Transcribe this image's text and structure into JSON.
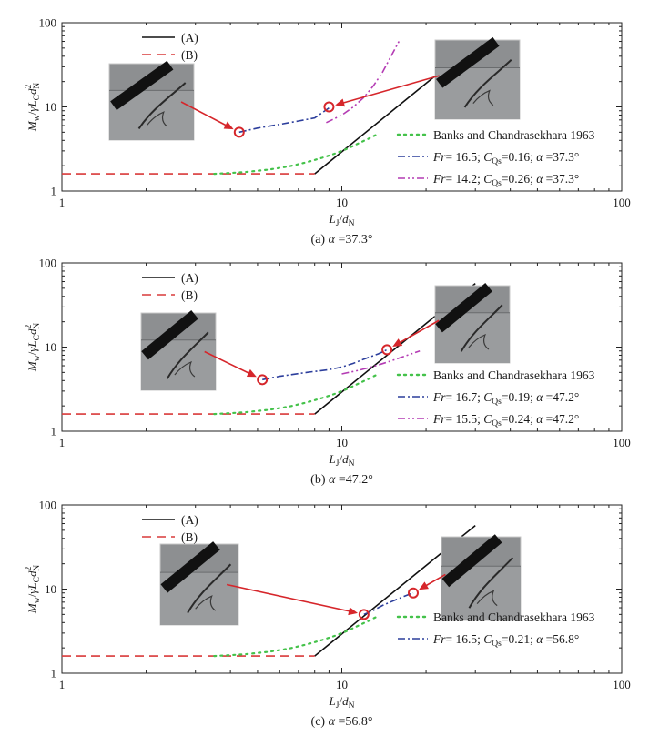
{
  "figure": {
    "xlabel": "L_J/d_N",
    "ylabel": "M_w/γL_C d_N^2",
    "xticks": [
      "1",
      "10",
      "100"
    ],
    "yticks": [
      "1",
      "10",
      "100"
    ],
    "legend_A": "(A)",
    "legend_B": "(B)"
  },
  "chart_data": [
    {
      "type": "line",
      "caption": "(a) α =37.3°",
      "xscale": "log",
      "yscale": "log",
      "xlim": [
        1,
        100
      ],
      "ylim": [
        1,
        100
      ],
      "xlabel": "L_J/d_N",
      "ylabel": "M_w/γL_C d_N^2",
      "series": [
        {
          "key": "A",
          "name": "(A)",
          "color": "#111111",
          "dash": "",
          "x": [
            8,
            30
          ],
          "y": [
            1.6,
            57
          ]
        },
        {
          "key": "B",
          "name": "(B)",
          "color": "#d93a3a",
          "dash": "10,6",
          "x": [
            1,
            8
          ],
          "y": [
            1.6,
            1.6
          ]
        },
        {
          "key": "banks",
          "name": "Banks and Chandrasekhara 1963",
          "color": "#44c24a",
          "dash": "2,5",
          "x": [
            3.5,
            4.5,
            5.5,
            6.5,
            7.5,
            8.5,
            9.5,
            10.5,
            11.5,
            12.5,
            13.5
          ],
          "y": [
            1.6,
            1.68,
            1.8,
            1.97,
            2.2,
            2.48,
            2.8,
            3.2,
            3.7,
            4.2,
            4.8
          ]
        },
        {
          "key": "s1",
          "name": "Fr= 16.5; C_Qs=0.16; α =37.3°",
          "color": "#2c3e9c",
          "dash": "8,3,2,3",
          "x": [
            4.3,
            5,
            6,
            7,
            8,
            9
          ],
          "y": [
            5,
            5.6,
            6.2,
            6.8,
            7.4,
            9.7
          ]
        },
        {
          "key": "s2",
          "name": "Fr= 14.2; C_Qs=0.26; α =37.3°",
          "color": "#b43cb4",
          "dash": "8,3,2,3,2,3",
          "x": [
            8.8,
            10,
            11,
            12,
            13,
            14,
            15,
            16
          ],
          "y": [
            6.5,
            8,
            10,
            13,
            18,
            26,
            40,
            60
          ]
        }
      ],
      "markers": [
        {
          "x": 4.3,
          "y": 5
        },
        {
          "x": 9,
          "y": 10
        }
      ],
      "legend": [
        "Banks and Chandrasekhara 1963",
        "Fr= 16.5; C_Qs=0.16; α =37.3°",
        "Fr= 14.2; C_Qs=0.26; α =37.3°"
      ]
    },
    {
      "type": "line",
      "caption": "(b) α =47.2°",
      "xscale": "log",
      "yscale": "log",
      "xlim": [
        1,
        100
      ],
      "ylim": [
        1,
        100
      ],
      "xlabel": "L_J/d_N",
      "ylabel": "M_w/γL_C d_N^2",
      "series": [
        {
          "key": "A",
          "name": "(A)",
          "color": "#111111",
          "dash": "",
          "x": [
            8,
            30
          ],
          "y": [
            1.6,
            57
          ]
        },
        {
          "key": "B",
          "name": "(B)",
          "color": "#d93a3a",
          "dash": "10,6",
          "x": [
            1,
            8
          ],
          "y": [
            1.6,
            1.6
          ]
        },
        {
          "key": "banks",
          "name": "Banks and Chandrasekhara 1963",
          "color": "#44c24a",
          "dash": "2,5",
          "x": [
            3.5,
            4.5,
            5.5,
            6.5,
            7.5,
            8.5,
            9.5,
            10.5,
            11.5,
            12.5,
            13.5
          ],
          "y": [
            1.6,
            1.68,
            1.8,
            1.97,
            2.2,
            2.48,
            2.8,
            3.2,
            3.7,
            4.2,
            4.8
          ]
        },
        {
          "key": "s1",
          "name": "Fr= 16.7; C_Qs=0.19; α =47.2°",
          "color": "#2c3e9c",
          "dash": "8,3,2,3",
          "x": [
            5.2,
            6,
            7.5,
            9,
            10,
            11,
            12,
            13.5,
            14.5
          ],
          "y": [
            4.1,
            4.5,
            5,
            5.4,
            5.8,
            6.4,
            7.2,
            8.3,
            9.3
          ]
        },
        {
          "key": "s2",
          "name": "Fr= 15.5; C_Qs=0.24; α =47.2°",
          "color": "#b43cb4",
          "dash": "8,3,2,3,2,3",
          "x": [
            10,
            11.5,
            13,
            14.5,
            16,
            17.5,
            19
          ],
          "y": [
            4.8,
            5.3,
            5.9,
            6.6,
            7.4,
            8.2,
            9
          ]
        }
      ],
      "markers": [
        {
          "x": 5.2,
          "y": 4.1
        },
        {
          "x": 14.5,
          "y": 9.3
        }
      ],
      "legend": [
        "Banks and Chandrasekhara 1963",
        "Fr= 16.7; C_Qs=0.19; α =47.2°",
        "Fr= 15.5; C_Qs=0.24; α =47.2°"
      ]
    },
    {
      "type": "line",
      "caption": "(c) α =56.8°",
      "xscale": "log",
      "yscale": "log",
      "xlim": [
        1,
        100
      ],
      "ylim": [
        1,
        100
      ],
      "xlabel": "L_J/d_N",
      "ylabel": "M_w/γL_C d_N^2",
      "series": [
        {
          "key": "A",
          "name": "(A)",
          "color": "#111111",
          "dash": "",
          "x": [
            8,
            30
          ],
          "y": [
            1.6,
            57
          ]
        },
        {
          "key": "B",
          "name": "(B)",
          "color": "#d93a3a",
          "dash": "10,6",
          "x": [
            1,
            8
          ],
          "y": [
            1.6,
            1.6
          ]
        },
        {
          "key": "banks",
          "name": "Banks and Chandrasekhara 1963",
          "color": "#44c24a",
          "dash": "2,5",
          "x": [
            3.5,
            4.5,
            5.5,
            6.5,
            7.5,
            8.5,
            9.5,
            10.5,
            11.5,
            12.5,
            13.5
          ],
          "y": [
            1.6,
            1.68,
            1.8,
            1.97,
            2.2,
            2.48,
            2.8,
            3.2,
            3.7,
            4.2,
            4.8
          ]
        },
        {
          "key": "s1",
          "name": "Fr= 16.5; C_Qs=0.21; α =56.8°",
          "color": "#2c3e9c",
          "dash": "8,3,2,3",
          "x": [
            12,
            13,
            14,
            15.5,
            17,
            18
          ],
          "y": [
            5,
            5.6,
            6.4,
            7.4,
            8.4,
            9
          ]
        }
      ],
      "markers": [
        {
          "x": 12,
          "y": 5
        },
        {
          "x": 18,
          "y": 9
        }
      ],
      "legend": [
        "Banks and Chandrasekhara 1963",
        "Fr= 16.5; C_Qs=0.21; α =56.8°"
      ]
    }
  ]
}
